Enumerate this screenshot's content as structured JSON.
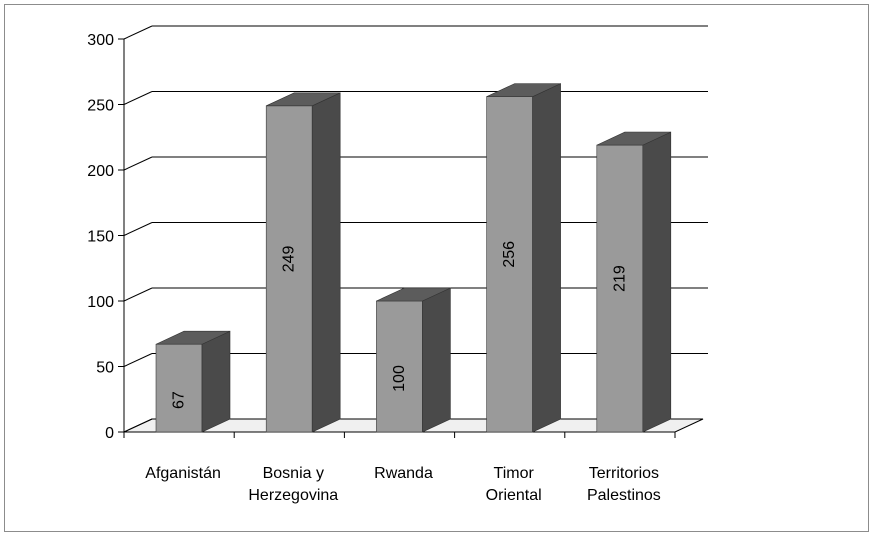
{
  "chart_data": {
    "type": "bar",
    "style": "3d-column",
    "categories": [
      [
        "Afganistán"
      ],
      [
        "Bosnia y",
        "Herzegovina"
      ],
      [
        "Rwanda"
      ],
      [
        "Timor",
        "Oriental"
      ],
      [
        "Territorios",
        "Palestinos"
      ]
    ],
    "values": [
      67,
      249,
      100,
      256,
      219
    ],
    "data_labels": [
      "67",
      "249",
      "100",
      "256",
      "219"
    ],
    "y_ticks": [
      "0",
      "50",
      "100",
      "150",
      "200",
      "250",
      "300"
    ],
    "ylim": [
      0,
      300
    ],
    "grid": true,
    "legend": false,
    "colors": {
      "bar_front": "#9a9a9a",
      "bar_top": "#5c5c5c",
      "bar_side": "#4a4a4a",
      "gridline": "#000000",
      "floor": "#f0f0f0"
    }
  }
}
